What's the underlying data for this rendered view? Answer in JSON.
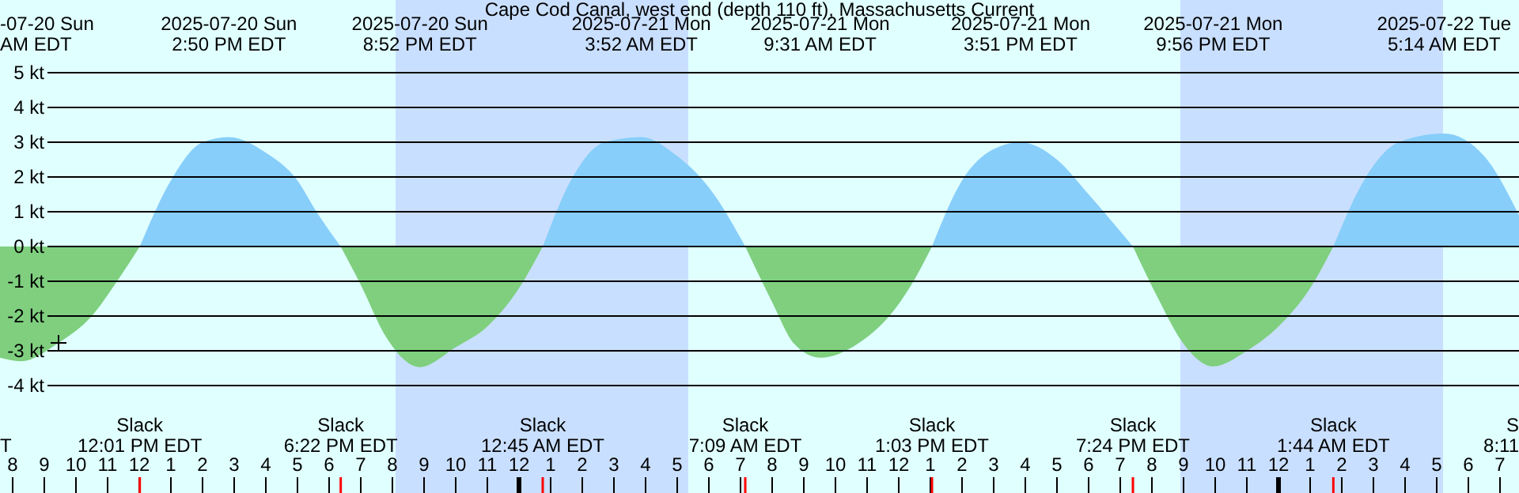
{
  "chart_data": {
    "type": "area",
    "title": "Cape Cod Canal, west end (depth 110 ft), Massachusetts Current",
    "x": [
      "2025-07-20T07:36",
      "2025-07-20T08:15",
      "2025-07-20T09:27",
      "2025-07-20T10:30",
      "2025-07-20T11:18",
      "2025-07-20T12:01",
      "2025-07-20T13:00",
      "2025-07-20T14:00",
      "2025-07-20T14:50",
      "2025-07-20T16:00",
      "2025-07-20T17:00",
      "2025-07-20T17:36",
      "2025-07-20T18:22",
      "2025-07-20T19:00",
      "2025-07-20T19:48",
      "2025-07-20T20:52",
      "2025-07-20T22:00",
      "2025-07-20T23:00",
      "2025-07-21T00:00",
      "2025-07-21T00:45",
      "2025-07-21T01:42",
      "2025-07-21T02:42",
      "2025-07-21T03:52",
      "2025-07-21T05:00",
      "2025-07-21T06:00",
      "2025-07-21T07:09",
      "2025-07-21T08:00",
      "2025-07-21T08:42",
      "2025-07-21T09:31",
      "2025-07-21T10:42",
      "2025-07-21T11:42",
      "2025-07-21T12:24",
      "2025-07-21T13:03",
      "2025-07-21T14:00",
      "2025-07-21T15:00",
      "2025-07-21T15:51",
      "2025-07-21T17:00",
      "2025-07-21T18:00",
      "2025-07-21T19:24",
      "2025-07-21T20:12",
      "2025-07-21T21:00",
      "2025-07-21T21:56",
      "2025-07-21T23:00",
      "2025-07-22T00:00",
      "2025-07-22T01:00",
      "2025-07-22T01:44",
      "2025-07-22T02:42",
      "2025-07-22T03:48",
      "2025-07-22T05:14",
      "2025-07-22T06:30",
      "2025-07-22T07:36"
    ],
    "series": [
      {
        "color": "#87cefa",
        "values": [
          null,
          null,
          null,
          null,
          null,
          0,
          1.9,
          3.0,
          3.15,
          2.7,
          1.9,
          1.0,
          0,
          null,
          null,
          null,
          null,
          null,
          null,
          0,
          2.0,
          3.0,
          3.15,
          2.6,
          1.7,
          0,
          null,
          null,
          null,
          null,
          null,
          null,
          0,
          1.9,
          2.8,
          3.0,
          2.5,
          1.5,
          0,
          null,
          null,
          null,
          null,
          null,
          null,
          0,
          1.9,
          3.0,
          3.25,
          2.6,
          0.9
        ]
      },
      {
        "color": "#7fcf7f",
        "values": [
          -3.2,
          -3.3,
          -2.77,
          -2.0,
          -1.0,
          0,
          null,
          null,
          null,
          null,
          null,
          null,
          0,
          -1.1,
          -2.6,
          -3.47,
          -2.9,
          -2.3,
          -1.2,
          0,
          null,
          null,
          null,
          null,
          null,
          0,
          -1.6,
          -2.8,
          -3.2,
          -2.8,
          -2.0,
          -1.1,
          0,
          null,
          null,
          null,
          null,
          null,
          0,
          -1.5,
          -2.8,
          -3.45,
          -3.0,
          -2.3,
          -1.2,
          0,
          null,
          null,
          null,
          null,
          null
        ]
      },
      {
        "type": "scatter",
        "color": "#000000",
        "marker": "cross",
        "x": [
          "2025-07-20T09:27"
        ],
        "values": [
          -2.77
        ]
      }
    ],
    "xlim": [
      "2025-07-20T07:36",
      "2025-07-22T07:36"
    ],
    "xticks": [
      {
        "value": "2025-07-20T08:00",
        "label": "8"
      },
      {
        "value": "2025-07-20T09:00",
        "label": "9"
      },
      {
        "value": "2025-07-20T10:00",
        "label": "10"
      },
      {
        "value": "2025-07-20T11:00",
        "label": "11"
      },
      {
        "value": "2025-07-20T12:00",
        "label": "12"
      },
      {
        "value": "2025-07-20T13:00",
        "label": "1"
      },
      {
        "value": "2025-07-20T14:00",
        "label": "2"
      },
      {
        "value": "2025-07-20T15:00",
        "label": "3"
      },
      {
        "value": "2025-07-20T16:00",
        "label": "4"
      },
      {
        "value": "2025-07-20T17:00",
        "label": "5"
      },
      {
        "value": "2025-07-20T18:00",
        "label": "6"
      },
      {
        "value": "2025-07-20T19:00",
        "label": "7"
      },
      {
        "value": "2025-07-20T20:00",
        "label": "8"
      },
      {
        "value": "2025-07-20T21:00",
        "label": "9"
      },
      {
        "value": "2025-07-20T22:00",
        "label": "10"
      },
      {
        "value": "2025-07-20T23:00",
        "label": "11"
      },
      {
        "value": "2025-07-21T00:00",
        "label": "12"
      },
      {
        "value": "2025-07-21T01:00",
        "label": "1"
      },
      {
        "value": "2025-07-21T02:00",
        "label": "2"
      },
      {
        "value": "2025-07-21T03:00",
        "label": "3"
      },
      {
        "value": "2025-07-21T04:00",
        "label": "4"
      },
      {
        "value": "2025-07-21T05:00",
        "label": "5"
      },
      {
        "value": "2025-07-21T06:00",
        "label": "6"
      },
      {
        "value": "2025-07-21T07:00",
        "label": "7"
      },
      {
        "value": "2025-07-21T08:00",
        "label": "8"
      },
      {
        "value": "2025-07-21T09:00",
        "label": "9"
      },
      {
        "value": "2025-07-21T10:00",
        "label": "10"
      },
      {
        "value": "2025-07-21T11:00",
        "label": "11"
      },
      {
        "value": "2025-07-21T12:00",
        "label": "12"
      },
      {
        "value": "2025-07-21T13:00",
        "label": "1"
      },
      {
        "value": "2025-07-21T14:00",
        "label": "2"
      },
      {
        "value": "2025-07-21T15:00",
        "label": "3"
      },
      {
        "value": "2025-07-21T16:00",
        "label": "4"
      },
      {
        "value": "2025-07-21T17:00",
        "label": "5"
      },
      {
        "value": "2025-07-21T18:00",
        "label": "6"
      },
      {
        "value": "2025-07-21T19:00",
        "label": "7"
      },
      {
        "value": "2025-07-21T20:00",
        "label": "8"
      },
      {
        "value": "2025-07-21T21:00",
        "label": "9"
      },
      {
        "value": "2025-07-21T22:00",
        "label": "10"
      },
      {
        "value": "2025-07-21T23:00",
        "label": "11"
      },
      {
        "value": "2025-07-22T00:00",
        "label": "12"
      },
      {
        "value": "2025-07-22T01:00",
        "label": "1"
      },
      {
        "value": "2025-07-22T02:00",
        "label": "2"
      },
      {
        "value": "2025-07-22T03:00",
        "label": "3"
      },
      {
        "value": "2025-07-22T04:00",
        "label": "4"
      },
      {
        "value": "2025-07-22T05:00",
        "label": "5"
      },
      {
        "value": "2025-07-22T06:00",
        "label": "6"
      },
      {
        "value": "2025-07-22T07:00",
        "label": "7"
      }
    ],
    "ylim": [
      -7.09,
      7.09
    ],
    "yticks": [
      {
        "value": 5,
        "label": "5 kt"
      },
      {
        "value": 4,
        "label": "4 kt"
      },
      {
        "value": 3,
        "label": "3 kt"
      },
      {
        "value": 2,
        "label": "2 kt"
      },
      {
        "value": 1,
        "label": "1 kt"
      },
      {
        "value": 0,
        "label": "0 kt"
      },
      {
        "value": -1,
        "label": "-1 kt"
      },
      {
        "value": -2,
        "label": "-2 kt"
      },
      {
        "value": -3,
        "label": "-3 kt"
      },
      {
        "value": -4,
        "label": "-4 kt"
      }
    ],
    "grid": "y",
    "bands": [
      {
        "axis": "x",
        "from": "2025-07-20T20:06",
        "to": "2025-07-21T05:21",
        "color": "#c9dfff"
      },
      {
        "axis": "x",
        "from": "2025-07-21T20:54",
        "to": "2025-07-22T05:12",
        "color": "#c9dfff"
      }
    ],
    "annotations": [
      "-07-20 Sun\nAM EDT",
      "2025-07-20 Sun\n2:50 PM EDT",
      "2025-07-20 Sun\n8:52 PM EDT",
      "2025-07-21 Mon\n3:52 AM EDT",
      "2025-07-21 Mon\n9:31 AM EDT",
      "2025-07-21 Mon\n3:51 PM EDT",
      "2025-07-21 Mon\n9:56 PM EDT",
      "2025-07-22 Tue\n5:14 AM EDT",
      "T",
      "Slack\n12:01 PM EDT",
      "Slack\n6:22 PM EDT",
      "Slack\n12:45 AM EDT",
      "Slack\n7:09 AM EDT",
      "Slack\n1:03 PM EDT",
      "Slack\n7:24 PM EDT",
      "Slack\n1:44 AM EDT",
      "S\n8:11"
    ]
  }
}
